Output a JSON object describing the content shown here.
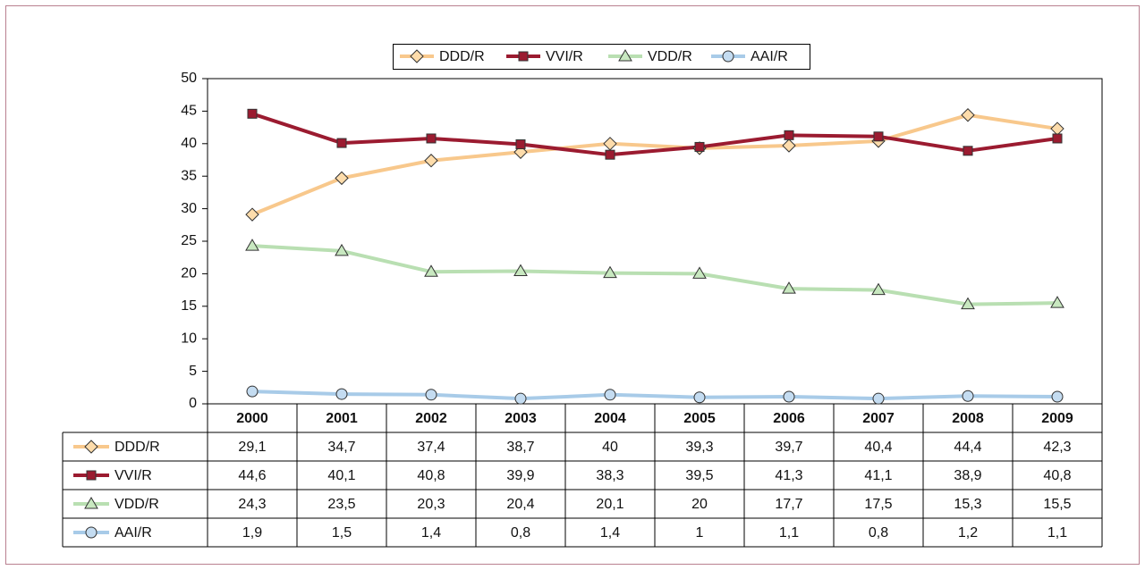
{
  "chart_data": {
    "type": "line",
    "categories": [
      "2000",
      "2001",
      "2002",
      "2003",
      "2004",
      "2005",
      "2006",
      "2007",
      "2008",
      "2009"
    ],
    "series": [
      {
        "name": "DDD/R",
        "color": "#f8c88c",
        "marker": "diamond",
        "marker_fill": "#fddcab",
        "values": [
          29.1,
          34.7,
          37.4,
          38.7,
          40,
          39.3,
          39.7,
          40.4,
          44.4,
          42.3
        ],
        "value_labels": [
          "29,1",
          "34,7",
          "37,4",
          "38,7",
          "40",
          "39,3",
          "39,7",
          "40,4",
          "44,4",
          "42,3"
        ]
      },
      {
        "name": "VVI/R",
        "color": "#9b1b30",
        "marker": "square",
        "marker_fill": "#9b1b30",
        "values": [
          44.6,
          40.1,
          40.8,
          39.9,
          38.3,
          39.5,
          41.3,
          41.1,
          38.9,
          40.8
        ],
        "value_labels": [
          "44,6",
          "40,1",
          "40,8",
          "39,9",
          "38,3",
          "39,5",
          "41,3",
          "41,1",
          "38,9",
          "40,8"
        ]
      },
      {
        "name": "VDD/R",
        "color": "#b9dfb2",
        "marker": "triangle",
        "marker_fill": "#c8e8c0",
        "values": [
          24.3,
          23.5,
          20.3,
          20.4,
          20.1,
          20,
          17.7,
          17.5,
          15.3,
          15.5
        ],
        "value_labels": [
          "24,3",
          "23,5",
          "20,3",
          "20,4",
          "20,1",
          "20",
          "17,7",
          "17,5",
          "15,3",
          "15,5"
        ]
      },
      {
        "name": "AAI/R",
        "color": "#a8cbe8",
        "marker": "circle",
        "marker_fill": "#c4dcf1",
        "values": [
          1.9,
          1.5,
          1.4,
          0.8,
          1.4,
          1,
          1.1,
          0.8,
          1.2,
          1.1
        ],
        "value_labels": [
          "1,9",
          "1,5",
          "1,4",
          "0,8",
          "1,4",
          "1",
          "1,1",
          "0,8",
          "1,2",
          "1,1"
        ]
      }
    ],
    "ylim": [
      0,
      50
    ],
    "yticks": [
      0,
      5,
      10,
      15,
      20,
      25,
      30,
      35,
      40,
      45,
      50
    ],
    "grid": false,
    "legend": "top"
  }
}
